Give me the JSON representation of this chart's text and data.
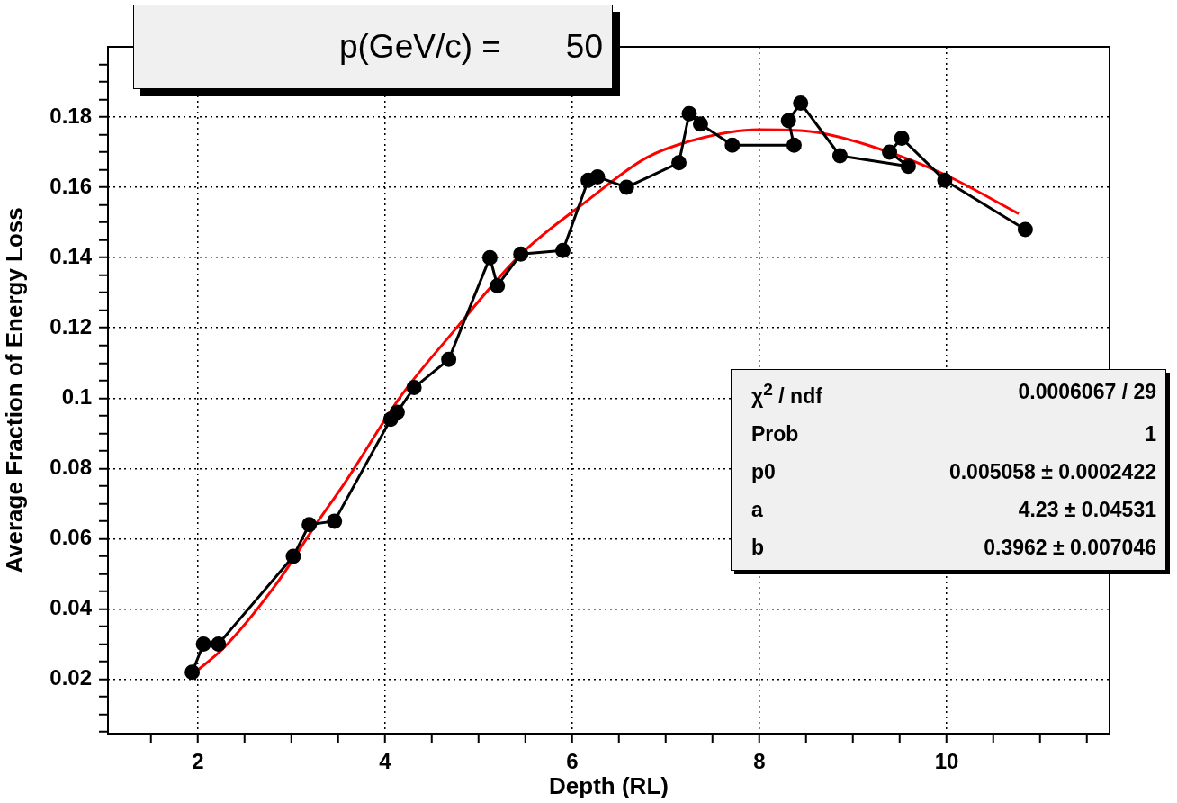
{
  "chart_data": {
    "type": "line",
    "title": "p(GeV/c) =       50",
    "xlabel": "Depth (RL)",
    "ylabel": "Average Fraction of Energy Loss",
    "annotations": [
      "χ$^{2}$ / ndf\t0.0006067 / 29",
      "Prob\t1",
      "p0\t0.005058 ± 0.0002422",
      "a\t4.23 ± 0.04531",
      "b\t0.3962 ± 0.007046"
    ],
    "marker": "circle",
    "grid": true,
    "xlim": [
      1.04,
      11.74
    ],
    "ylim": [
      0.0045,
      0.2
    ],
    "xticks": [
      {
        "value": 1.5,
        "label": null
      },
      2,
      {
        "value": 2.5,
        "label": null
      },
      {
        "value": 3,
        "label": null
      },
      {
        "value": 3.5,
        "label": null
      },
      4,
      {
        "value": 4.5,
        "label": null
      },
      {
        "value": 5,
        "label": null
      },
      {
        "value": 5.5,
        "label": null
      },
      6,
      {
        "value": 6.5,
        "label": null
      },
      {
        "value": 7,
        "label": null
      },
      {
        "value": 7.5,
        "label": null
      },
      8,
      {
        "value": 8.5,
        "label": null
      },
      {
        "value": 9,
        "label": null
      },
      {
        "value": 9.5,
        "label": null
      },
      10,
      {
        "value": 10.5,
        "label": null
      },
      {
        "value": 11,
        "label": null
      },
      {
        "value": 11.5,
        "label": null
      }
    ],
    "yticks": [
      {
        "value": 0.005,
        "label": null
      },
      {
        "value": 0.01,
        "label": null
      },
      {
        "value": 0.015,
        "label": null
      },
      0.02,
      {
        "value": 0.025,
        "label": null
      },
      {
        "value": 0.03,
        "label": null
      },
      {
        "value": 0.035,
        "label": null
      },
      0.04,
      {
        "value": 0.045,
        "label": null
      },
      {
        "value": 0.05,
        "label": null
      },
      {
        "value": 0.055,
        "label": null
      },
      0.06,
      {
        "value": 0.065,
        "label": null
      },
      {
        "value": 0.07,
        "label": null
      },
      {
        "value": 0.075,
        "label": null
      },
      0.08,
      {
        "value": 0.085,
        "label": null
      },
      {
        "value": 0.09,
        "label": null
      },
      {
        "value": 0.095,
        "label": null
      },
      0.1,
      {
        "value": 0.105,
        "label": null
      },
      {
        "value": 0.11,
        "label": null
      },
      {
        "value": 0.115,
        "label": null
      },
      0.12,
      {
        "value": 0.125,
        "label": null
      },
      {
        "value": 0.13,
        "label": null
      },
      {
        "value": 0.135,
        "label": null
      },
      0.14,
      {
        "value": 0.145,
        "label": null
      },
      {
        "value": 0.15,
        "label": null
      },
      {
        "value": 0.155,
        "label": null
      },
      0.16,
      {
        "value": 0.165,
        "label": null
      },
      {
        "value": 0.17,
        "label": null
      },
      {
        "value": 0.175,
        "label": null
      },
      0.18,
      {
        "value": 0.185,
        "label": null
      },
      {
        "value": 0.19,
        "label": null
      },
      {
        "value": 0.195,
        "label": null
      }
    ],
    "series": [
      {
        "color": "#000000",
        "x": [
          1.94,
          2.06,
          2.22,
          3.02,
          3.19,
          3.46,
          4.06,
          4.13,
          4.31,
          4.68,
          5.12,
          5.2,
          5.45,
          5.9,
          6.17,
          6.27,
          6.58,
          7.14,
          7.25,
          7.37,
          7.71,
          8.37,
          8.31,
          8.44,
          8.86,
          9.59,
          9.39,
          9.52,
          9.98,
          10.84
        ],
        "values": [
          0.022,
          0.03,
          0.03,
          0.055,
          0.064,
          0.065,
          0.094,
          0.096,
          0.103,
          0.111,
          0.14,
          0.132,
          0.141,
          0.142,
          0.162,
          0.163,
          0.16,
          0.167,
          0.181,
          0.178,
          0.172,
          0.172,
          0.179,
          0.184,
          0.169,
          0.166,
          0.17,
          0.174,
          0.162,
          0.148
        ]
      },
      {
        "type": "line",
        "marker": "none",
        "color": "#ff0000",
        "x": [
          1.95,
          2.29,
          2.83,
          3.28,
          3.57,
          4.17,
          4.71,
          5.45,
          6.18,
          6.79,
          7.32,
          7.99,
          8.54,
          9.16,
          9.95,
          10.77
        ],
        "values": [
          0.0215,
          0.0293,
          0.0468,
          0.0648,
          0.0759,
          0.1006,
          0.1183,
          0.1409,
          0.1566,
          0.1684,
          0.1736,
          0.1764,
          0.1759,
          0.172,
          0.164,
          0.1525
        ]
      }
    ]
  }
}
